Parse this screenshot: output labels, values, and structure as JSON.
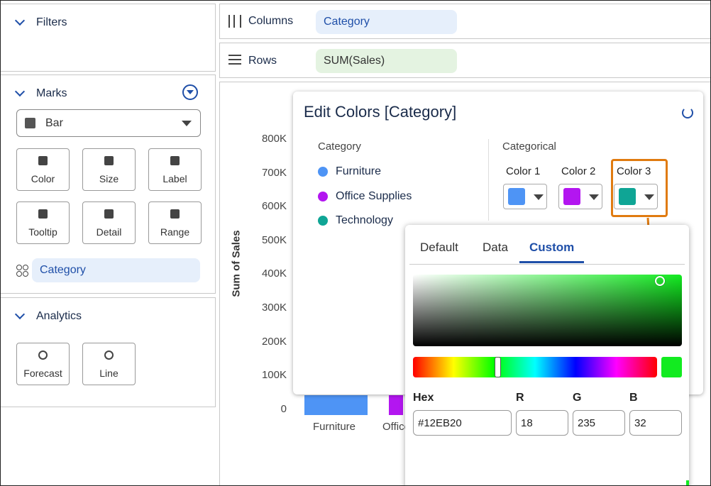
{
  "sidebar": {
    "filters": "Filters",
    "marks": {
      "title": "Marks",
      "mark_type": "Bar",
      "buttons": [
        "Color",
        "Size",
        "Label",
        "Tooltip",
        "Detail",
        "Range"
      ],
      "pill": "Category"
    },
    "analytics": {
      "title": "Analytics",
      "buttons": [
        "Forecast",
        "Line"
      ]
    }
  },
  "shelves": {
    "columns": {
      "label": "Columns",
      "pill": "Category"
    },
    "rows": {
      "label": "Rows",
      "pill": "SUM(Sales)"
    }
  },
  "chart": {
    "y_axis_title": "Sum of Sales",
    "yticks": [
      "800K",
      "700K",
      "600K",
      "500K",
      "400K",
      "300K",
      "200K",
      "100K",
      "0"
    ],
    "categories": [
      "Furniture",
      "Office Supplies"
    ]
  },
  "dialog": {
    "title": "Edit Colors  [Category]",
    "legend_title": "Category",
    "legend": [
      "Furniture",
      "Office Supplies",
      "Technology"
    ],
    "palette_title": "Categorical",
    "color_slots": [
      "Color 1",
      "Color 2",
      "Color 3"
    ]
  },
  "picker": {
    "tabs": [
      "Default",
      "Data",
      "Custom"
    ],
    "fields": {
      "labels": [
        "Hex",
        "R",
        "G",
        "B"
      ],
      "values": [
        "#12EB20",
        "18",
        "235",
        "32"
      ]
    }
  }
}
